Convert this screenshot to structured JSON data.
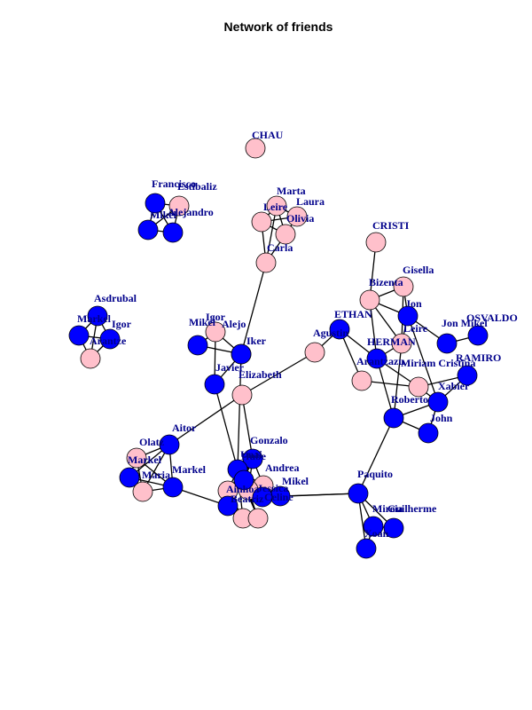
{
  "title": "Network of friends",
  "colors": {
    "female": "#ffc0cb",
    "male": "#0000ff",
    "label": "#00008b",
    "edge": "#000000"
  },
  "nodes": [
    {
      "id": "chau",
      "label": "CHAU",
      "group": "female"
    },
    {
      "id": "francisco",
      "label": "Francisco",
      "group": "male"
    },
    {
      "id": "estibaliz",
      "label": "Estibaliz",
      "group": "female"
    },
    {
      "id": "mikel1",
      "label": "Mikel",
      "group": "male"
    },
    {
      "id": "alejandro",
      "label": "Alejandro",
      "group": "male"
    },
    {
      "id": "marta",
      "label": "Marta",
      "group": "female"
    },
    {
      "id": "laura",
      "label": "Laura",
      "group": "female"
    },
    {
      "id": "leire1",
      "label": "Leire",
      "group": "female"
    },
    {
      "id": "olivia",
      "label": "Olivia",
      "group": "female"
    },
    {
      "id": "carla",
      "label": "Carla",
      "group": "female"
    },
    {
      "id": "cristi",
      "label": "CRISTI",
      "group": "female"
    },
    {
      "id": "asdrubal",
      "label": "Asdrubal",
      "group": "male"
    },
    {
      "id": "markel1",
      "label": "Markel",
      "group": "male"
    },
    {
      "id": "igor1",
      "label": "Igor",
      "group": "male"
    },
    {
      "id": "arantze",
      "label": "Arantze",
      "group": "female"
    },
    {
      "id": "gisella",
      "label": "Gisella",
      "group": "female"
    },
    {
      "id": "bizenta",
      "label": "Bizenta",
      "group": "female"
    },
    {
      "id": "jon",
      "label": "Jon",
      "group": "male"
    },
    {
      "id": "ethan",
      "label": "ETHAN",
      "group": "male"
    },
    {
      "id": "igor2",
      "label": "Igor",
      "group": "female"
    },
    {
      "id": "mikeli",
      "label": "Mikel",
      "group": "male"
    },
    {
      "id": "alejo",
      "label": "Alejo",
      "group": "male"
    },
    {
      "id": "iker",
      "label": "Iker",
      "group": "male"
    },
    {
      "id": "agustin",
      "label": "Agustin",
      "group": "female"
    },
    {
      "id": "herman",
      "label": "HERMAN",
      "group": "male"
    },
    {
      "id": "leire2",
      "label": "Leire",
      "group": "female"
    },
    {
      "id": "jonmikel",
      "label": "Jon Mikel",
      "group": "male"
    },
    {
      "id": "osvaldo",
      "label": "OSVALDO",
      "group": "male"
    },
    {
      "id": "ramiro",
      "label": "RAMIRO",
      "group": "male"
    },
    {
      "id": "arantza",
      "label": "Arantzazu",
      "group": "female"
    },
    {
      "id": "miriam",
      "label": "Miriam Cristina",
      "group": "female"
    },
    {
      "id": "xabier",
      "label": "Xabier",
      "group": "male"
    },
    {
      "id": "roberto",
      "label": "Roberto",
      "group": "male"
    },
    {
      "id": "john",
      "label": "John",
      "group": "male"
    },
    {
      "id": "javier",
      "label": "Javier",
      "group": "male"
    },
    {
      "id": "elizabeth",
      "label": "Elizabeth",
      "group": "female"
    },
    {
      "id": "aitor",
      "label": "Aitor",
      "group": "male"
    },
    {
      "id": "olatz",
      "label": "Olatz",
      "group": "female"
    },
    {
      "id": "markel2",
      "label": "Markel",
      "group": "male"
    },
    {
      "id": "maria",
      "label": "Maria",
      "group": "female"
    },
    {
      "id": "markel3",
      "label": "Markel",
      "group": "male"
    },
    {
      "id": "gonzalo",
      "label": "Gonzalo",
      "group": "male"
    },
    {
      "id": "unai",
      "label": "Unai",
      "group": "male"
    },
    {
      "id": "andrea",
      "label": "Andrea",
      "group": "female"
    },
    {
      "id": "mikel4",
      "label": "Mikel",
      "group": "male"
    },
    {
      "id": "paquito",
      "label": "Paquito",
      "group": "male"
    },
    {
      "id": "mireia",
      "label": "Mireia",
      "group": "male"
    },
    {
      "id": "guilherme",
      "label": "Guilherme",
      "group": "male"
    },
    {
      "id": "xoan",
      "label": "Xoan",
      "group": "male"
    },
    {
      "id": "ainhoa",
      "label": "Ainhoa",
      "group": "female"
    },
    {
      "id": "jessica",
      "label": "Jessica",
      "group": "female"
    },
    {
      "id": "hube",
      "label": "Hube",
      "group": "male"
    },
    {
      "id": "celine",
      "label": "Celine",
      "group": "male"
    },
    {
      "id": "beatriz",
      "label": "Beatriz",
      "group": "male"
    },
    {
      "id": "pc1",
      "label": "",
      "group": "female"
    },
    {
      "id": "pc2",
      "label": "",
      "group": "female"
    }
  ],
  "edges": [
    [
      "francisco",
      "estibaliz"
    ],
    [
      "francisco",
      "mikel1"
    ],
    [
      "francisco",
      "alejandro"
    ],
    [
      "estibaliz",
      "mikel1"
    ],
    [
      "estibaliz",
      "alejandro"
    ],
    [
      "mikel1",
      "alejandro"
    ],
    [
      "marta",
      "leire1"
    ],
    [
      "marta",
      "olivia"
    ],
    [
      "marta",
      "laura"
    ],
    [
      "leire1",
      "olivia"
    ],
    [
      "leire1",
      "laura"
    ],
    [
      "olivia",
      "laura"
    ],
    [
      "leire1",
      "carla"
    ],
    [
      "marta",
      "carla"
    ],
    [
      "olivia",
      "carla"
    ],
    [
      "carla",
      "iker"
    ],
    [
      "asdrubal",
      "markel1"
    ],
    [
      "asdrubal",
      "igor1"
    ],
    [
      "asdrubal",
      "arantze"
    ],
    [
      "markel1",
      "igor1"
    ],
    [
      "markel1",
      "arantze"
    ],
    [
      "igor1",
      "arantze"
    ],
    [
      "cristi",
      "bizenta"
    ],
    [
      "bizenta",
      "gisella"
    ],
    [
      "bizenta",
      "jon"
    ],
    [
      "gisella",
      "jon"
    ],
    [
      "gisella",
      "leire2"
    ],
    [
      "bizenta",
      "herman"
    ],
    [
      "bizenta",
      "leire2"
    ],
    [
      "jon",
      "leire2"
    ],
    [
      "jon",
      "jonmikel"
    ],
    [
      "jonmikel",
      "osvaldo"
    ],
    [
      "jon",
      "xabier"
    ],
    [
      "ethan",
      "agustin"
    ],
    [
      "ethan",
      "arantza"
    ],
    [
      "ethan",
      "herman"
    ],
    [
      "herman",
      "leire2"
    ],
    [
      "herman",
      "roberto"
    ],
    [
      "herman",
      "miriam"
    ],
    [
      "leire2",
      "roberto"
    ],
    [
      "arantza",
      "miriam"
    ],
    [
      "miriam",
      "xabier"
    ],
    [
      "miriam",
      "ramiro"
    ],
    [
      "xabier",
      "ramiro"
    ],
    [
      "xabier",
      "roberto"
    ],
    [
      "roberto",
      "john"
    ],
    [
      "xabier",
      "john"
    ],
    [
      "roberto",
      "paquito"
    ],
    [
      "agustin",
      "elizabeth"
    ],
    [
      "mikeli",
      "igor2"
    ],
    [
      "mikeli",
      "iker"
    ],
    [
      "igor2",
      "iker"
    ],
    [
      "igor2",
      "javier"
    ],
    [
      "iker",
      "javier"
    ],
    [
      "elizabeth",
      "aitor"
    ],
    [
      "elizabeth",
      "gonzalo"
    ],
    [
      "iker",
      "unai"
    ],
    [
      "javier",
      "unai"
    ],
    [
      "aitor",
      "olatz"
    ],
    [
      "aitor",
      "markel2"
    ],
    [
      "aitor",
      "maria"
    ],
    [
      "aitor",
      "markel3"
    ],
    [
      "olatz",
      "markel2"
    ],
    [
      "olatz",
      "maria"
    ],
    [
      "olatz",
      "markel3"
    ],
    [
      "markel2",
      "maria"
    ],
    [
      "markel2",
      "markel3"
    ],
    [
      "maria",
      "markel3"
    ],
    [
      "markel3",
      "beatriz"
    ],
    [
      "unai",
      "gonzalo"
    ],
    [
      "unai",
      "andrea"
    ],
    [
      "unai",
      "mikel4"
    ],
    [
      "unai",
      "ainhoa"
    ],
    [
      "unai",
      "jessica"
    ],
    [
      "unai",
      "hube"
    ],
    [
      "unai",
      "celine"
    ],
    [
      "unai",
      "beatriz"
    ],
    [
      "unai",
      "pc1"
    ],
    [
      "unai",
      "pc2"
    ],
    [
      "gonzalo",
      "andrea"
    ],
    [
      "gonzalo",
      "jessica"
    ],
    [
      "gonzalo",
      "hube"
    ],
    [
      "gonzalo",
      "ainhoa"
    ],
    [
      "gonzalo",
      "beatriz"
    ],
    [
      "andrea",
      "mikel4"
    ],
    [
      "andrea",
      "hube"
    ],
    [
      "andrea",
      "celine"
    ],
    [
      "ainhoa",
      "jessica"
    ],
    [
      "ainhoa",
      "beatriz"
    ],
    [
      "ainhoa",
      "pc1"
    ],
    [
      "jessica",
      "hube"
    ],
    [
      "jessica",
      "celine"
    ],
    [
      "jessica",
      "pc2"
    ],
    [
      "hube",
      "celine"
    ],
    [
      "beatriz",
      "pc1"
    ],
    [
      "pc1",
      "pc2"
    ],
    [
      "hube",
      "pc2"
    ],
    [
      "celine",
      "paquito"
    ],
    [
      "mikel4",
      "paquito"
    ],
    [
      "paquito",
      "mireia"
    ],
    [
      "paquito",
      "guilherme"
    ],
    [
      "paquito",
      "xoan"
    ],
    [
      "mireia",
      "guilherme"
    ],
    [
      "mireia",
      "xoan"
    ]
  ]
}
